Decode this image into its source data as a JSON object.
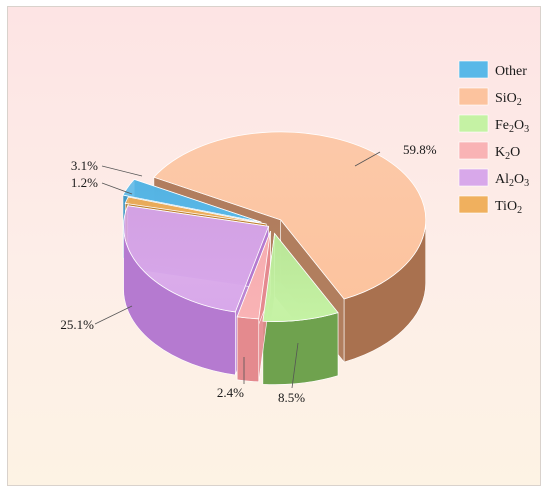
{
  "chart_data": {
    "type": "pie",
    "style": "3d-exploded",
    "legend_position": "top-right",
    "slices": [
      {
        "key": "other",
        "label": "Other",
        "value": 3.1,
        "value_label": "3.1%",
        "color": "#58b8e8",
        "side_color": "#2f8fc0"
      },
      {
        "key": "sio2",
        "label": "SiO",
        "label_sub": "2",
        "label_after": "",
        "value": 59.8,
        "value_label": "59.8%",
        "color": "#fcc39e",
        "side_color": "#a9714f"
      },
      {
        "key": "fe2o3",
        "label": "Fe",
        "label_sub": "2",
        "label_after": "O",
        "label_sub2": "3",
        "value": 8.5,
        "value_label": "8.5%",
        "color": "#c5f2a4",
        "side_color": "#6fa24e"
      },
      {
        "key": "k2o",
        "label": "K",
        "label_sub": "2",
        "label_after": "O",
        "value": 2.4,
        "value_label": "2.4%",
        "color": "#f9b3b5",
        "side_color": "#e48a8e"
      },
      {
        "key": "al2o3",
        "label": "Al",
        "label_sub": "2",
        "label_after": "O",
        "label_sub2": "3",
        "value": 25.1,
        "value_label": "25.1%",
        "color": "#d8a8ea",
        "side_color": "#b57ad0"
      },
      {
        "key": "tio2",
        "label": "TiO",
        "label_sub": "2",
        "label_after": "",
        "value": 1.2,
        "value_label": "1.2%",
        "color": "#f0b05e",
        "side_color": "#c08030"
      }
    ]
  }
}
